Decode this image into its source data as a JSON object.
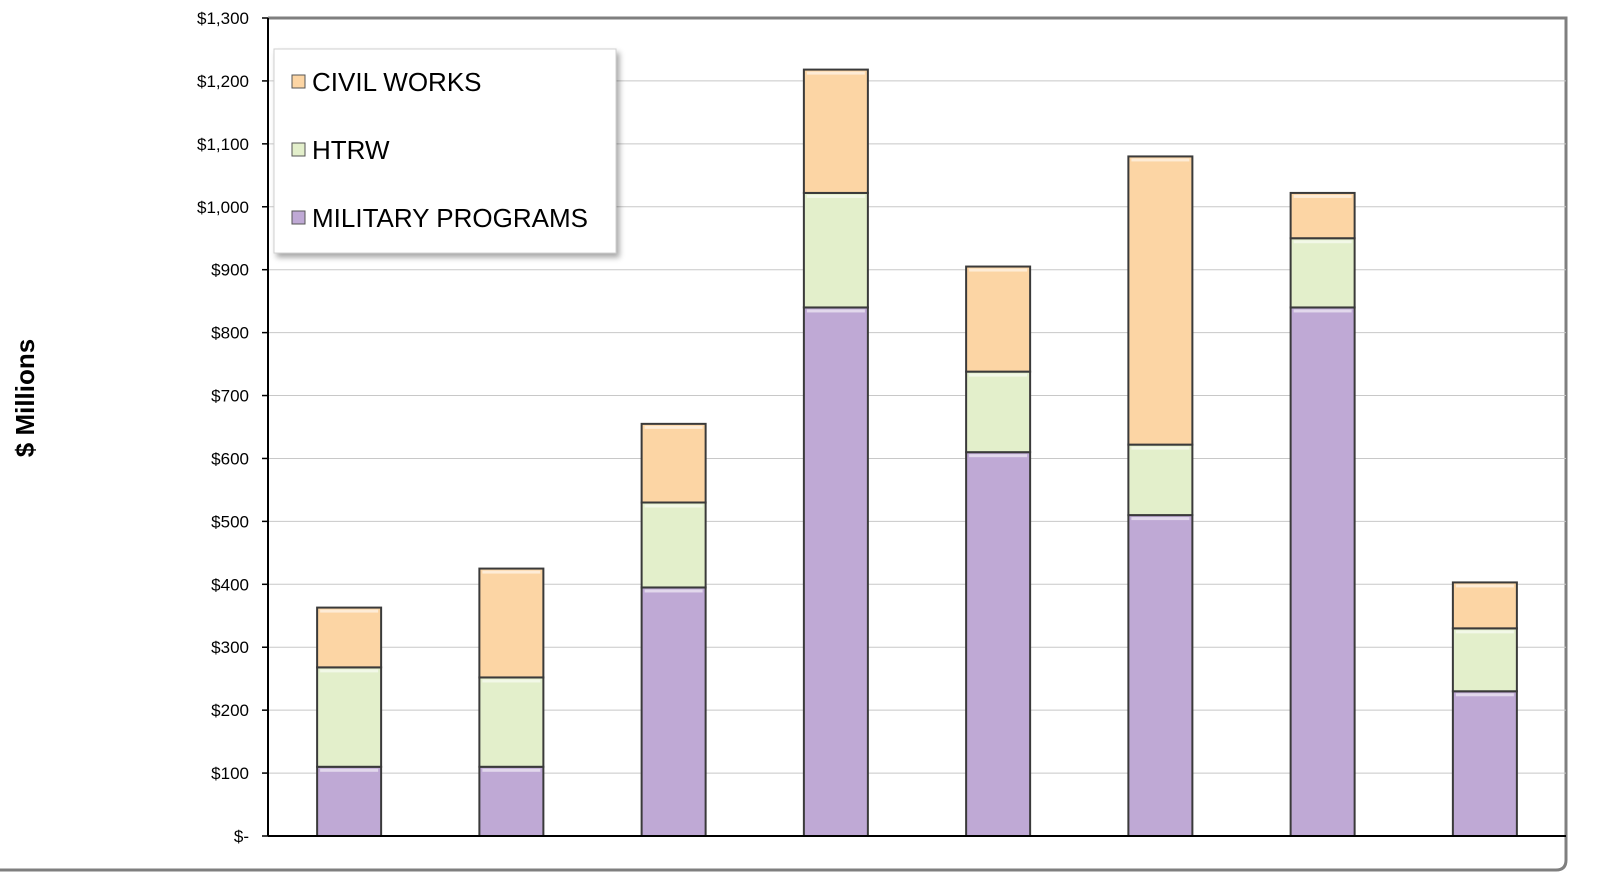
{
  "chart_data": {
    "type": "bar",
    "stacked": true,
    "categories": [
      "",
      "",
      "",
      "",
      "",
      "",
      "",
      ""
    ],
    "ylabel": "$ Millions",
    "ylim": [
      0,
      1300
    ],
    "yticks": [
      0,
      100,
      200,
      300,
      400,
      500,
      600,
      700,
      800,
      900,
      1000,
      1100,
      1200,
      1300
    ],
    "ytick_labels": [
      "$-",
      "$100",
      "$200",
      "$300",
      "$400",
      "$500",
      "$600",
      "$700",
      "$800",
      "$900",
      "$1,000",
      "$1,100",
      "$1,200",
      "$1,300"
    ],
    "grid": true,
    "legend": {
      "position": "top-left",
      "entries": [
        "CIVIL WORKS",
        "HTRW",
        "MILITARY PROGRAMS"
      ]
    },
    "series": [
      {
        "name": "MILITARY PROGRAMS",
        "color": "#bfa9d5",
        "values": [
          110,
          110,
          395,
          840,
          610,
          510,
          840,
          230
        ]
      },
      {
        "name": "HTRW",
        "color": "#e3efcb",
        "values": [
          158,
          142,
          135,
          182,
          128,
          112,
          110,
          100
        ]
      },
      {
        "name": "CIVIL WORKS",
        "color": "#fcd5a4",
        "values": [
          95,
          173,
          125,
          196,
          167,
          458,
          72,
          73
        ]
      }
    ]
  }
}
